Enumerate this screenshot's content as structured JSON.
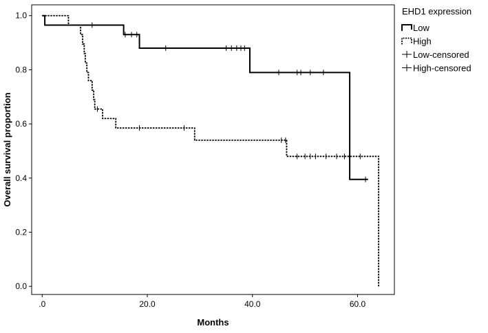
{
  "chart_data": {
    "type": "line",
    "subtype": "kaplan-meier-step",
    "title": "",
    "xlabel": "Months",
    "ylabel": "Overall survival proportion",
    "xlim": [
      -2,
      67
    ],
    "ylim": [
      -0.03,
      1.04
    ],
    "x_ticks": [
      0,
      20,
      40,
      60
    ],
    "x_tick_labels": [
      ".0",
      "20.0",
      "40.0",
      "60.0"
    ],
    "y_ticks": [
      0,
      0.2,
      0.4,
      0.6,
      0.8,
      1.0
    ],
    "y_tick_labels": [
      "0.0",
      "0.2",
      "0.4",
      "0.6",
      "0.8",
      "1.0"
    ],
    "grid": false,
    "legend": {
      "title": "EHD1 expression",
      "placement": "right",
      "entries": [
        {
          "label": "Low",
          "style": "solid-step"
        },
        {
          "label": "High",
          "style": "dotted-step"
        },
        {
          "label": "Low-censored",
          "style": "censor-mark"
        },
        {
          "label": "High-censored",
          "style": "censor-mark"
        }
      ]
    },
    "series": [
      {
        "name": "Low",
        "style": "solid",
        "color": "#000000",
        "steps": [
          [
            0,
            1.0
          ],
          [
            0.5,
            0.965
          ],
          [
            15.5,
            0.93
          ],
          [
            18.5,
            0.88
          ],
          [
            39.5,
            0.79
          ],
          [
            58.5,
            0.395
          ],
          [
            62,
            0.395
          ]
        ],
        "censored": [
          [
            9.5,
            0.965
          ],
          [
            15.8,
            0.93
          ],
          [
            17.0,
            0.93
          ],
          [
            18.0,
            0.93
          ],
          [
            23.5,
            0.88
          ],
          [
            35.0,
            0.88
          ],
          [
            36.0,
            0.88
          ],
          [
            37.0,
            0.88
          ],
          [
            37.8,
            0.88
          ],
          [
            38.5,
            0.88
          ],
          [
            45.0,
            0.79
          ],
          [
            48.5,
            0.79
          ],
          [
            49.2,
            0.79
          ],
          [
            51.0,
            0.79
          ],
          [
            53.5,
            0.79
          ],
          [
            61.5,
            0.395
          ]
        ]
      },
      {
        "name": "High",
        "style": "dotted",
        "color": "#000000",
        "steps": [
          [
            0,
            1.0
          ],
          [
            5.0,
            0.965
          ],
          [
            7.3,
            0.93
          ],
          [
            7.7,
            0.895
          ],
          [
            8.0,
            0.86
          ],
          [
            8.2,
            0.825
          ],
          [
            8.5,
            0.79
          ],
          [
            8.8,
            0.76
          ],
          [
            9.5,
            0.725
          ],
          [
            9.8,
            0.69
          ],
          [
            10.0,
            0.655
          ],
          [
            11.5,
            0.62
          ],
          [
            14.0,
            0.585
          ],
          [
            29.0,
            0.54
          ],
          [
            46.5,
            0.48
          ],
          [
            64,
            0.48
          ],
          [
            64,
            0.0
          ]
        ],
        "censored": [
          [
            10.5,
            0.655
          ],
          [
            18.5,
            0.585
          ],
          [
            27.0,
            0.585
          ],
          [
            45.5,
            0.54
          ],
          [
            46.3,
            0.54
          ],
          [
            48.5,
            0.48
          ],
          [
            50.0,
            0.48
          ],
          [
            51.0,
            0.48
          ],
          [
            52.0,
            0.48
          ],
          [
            54.0,
            0.48
          ],
          [
            56.0,
            0.48
          ],
          [
            57.5,
            0.48
          ],
          [
            60.5,
            0.48
          ]
        ]
      }
    ]
  }
}
